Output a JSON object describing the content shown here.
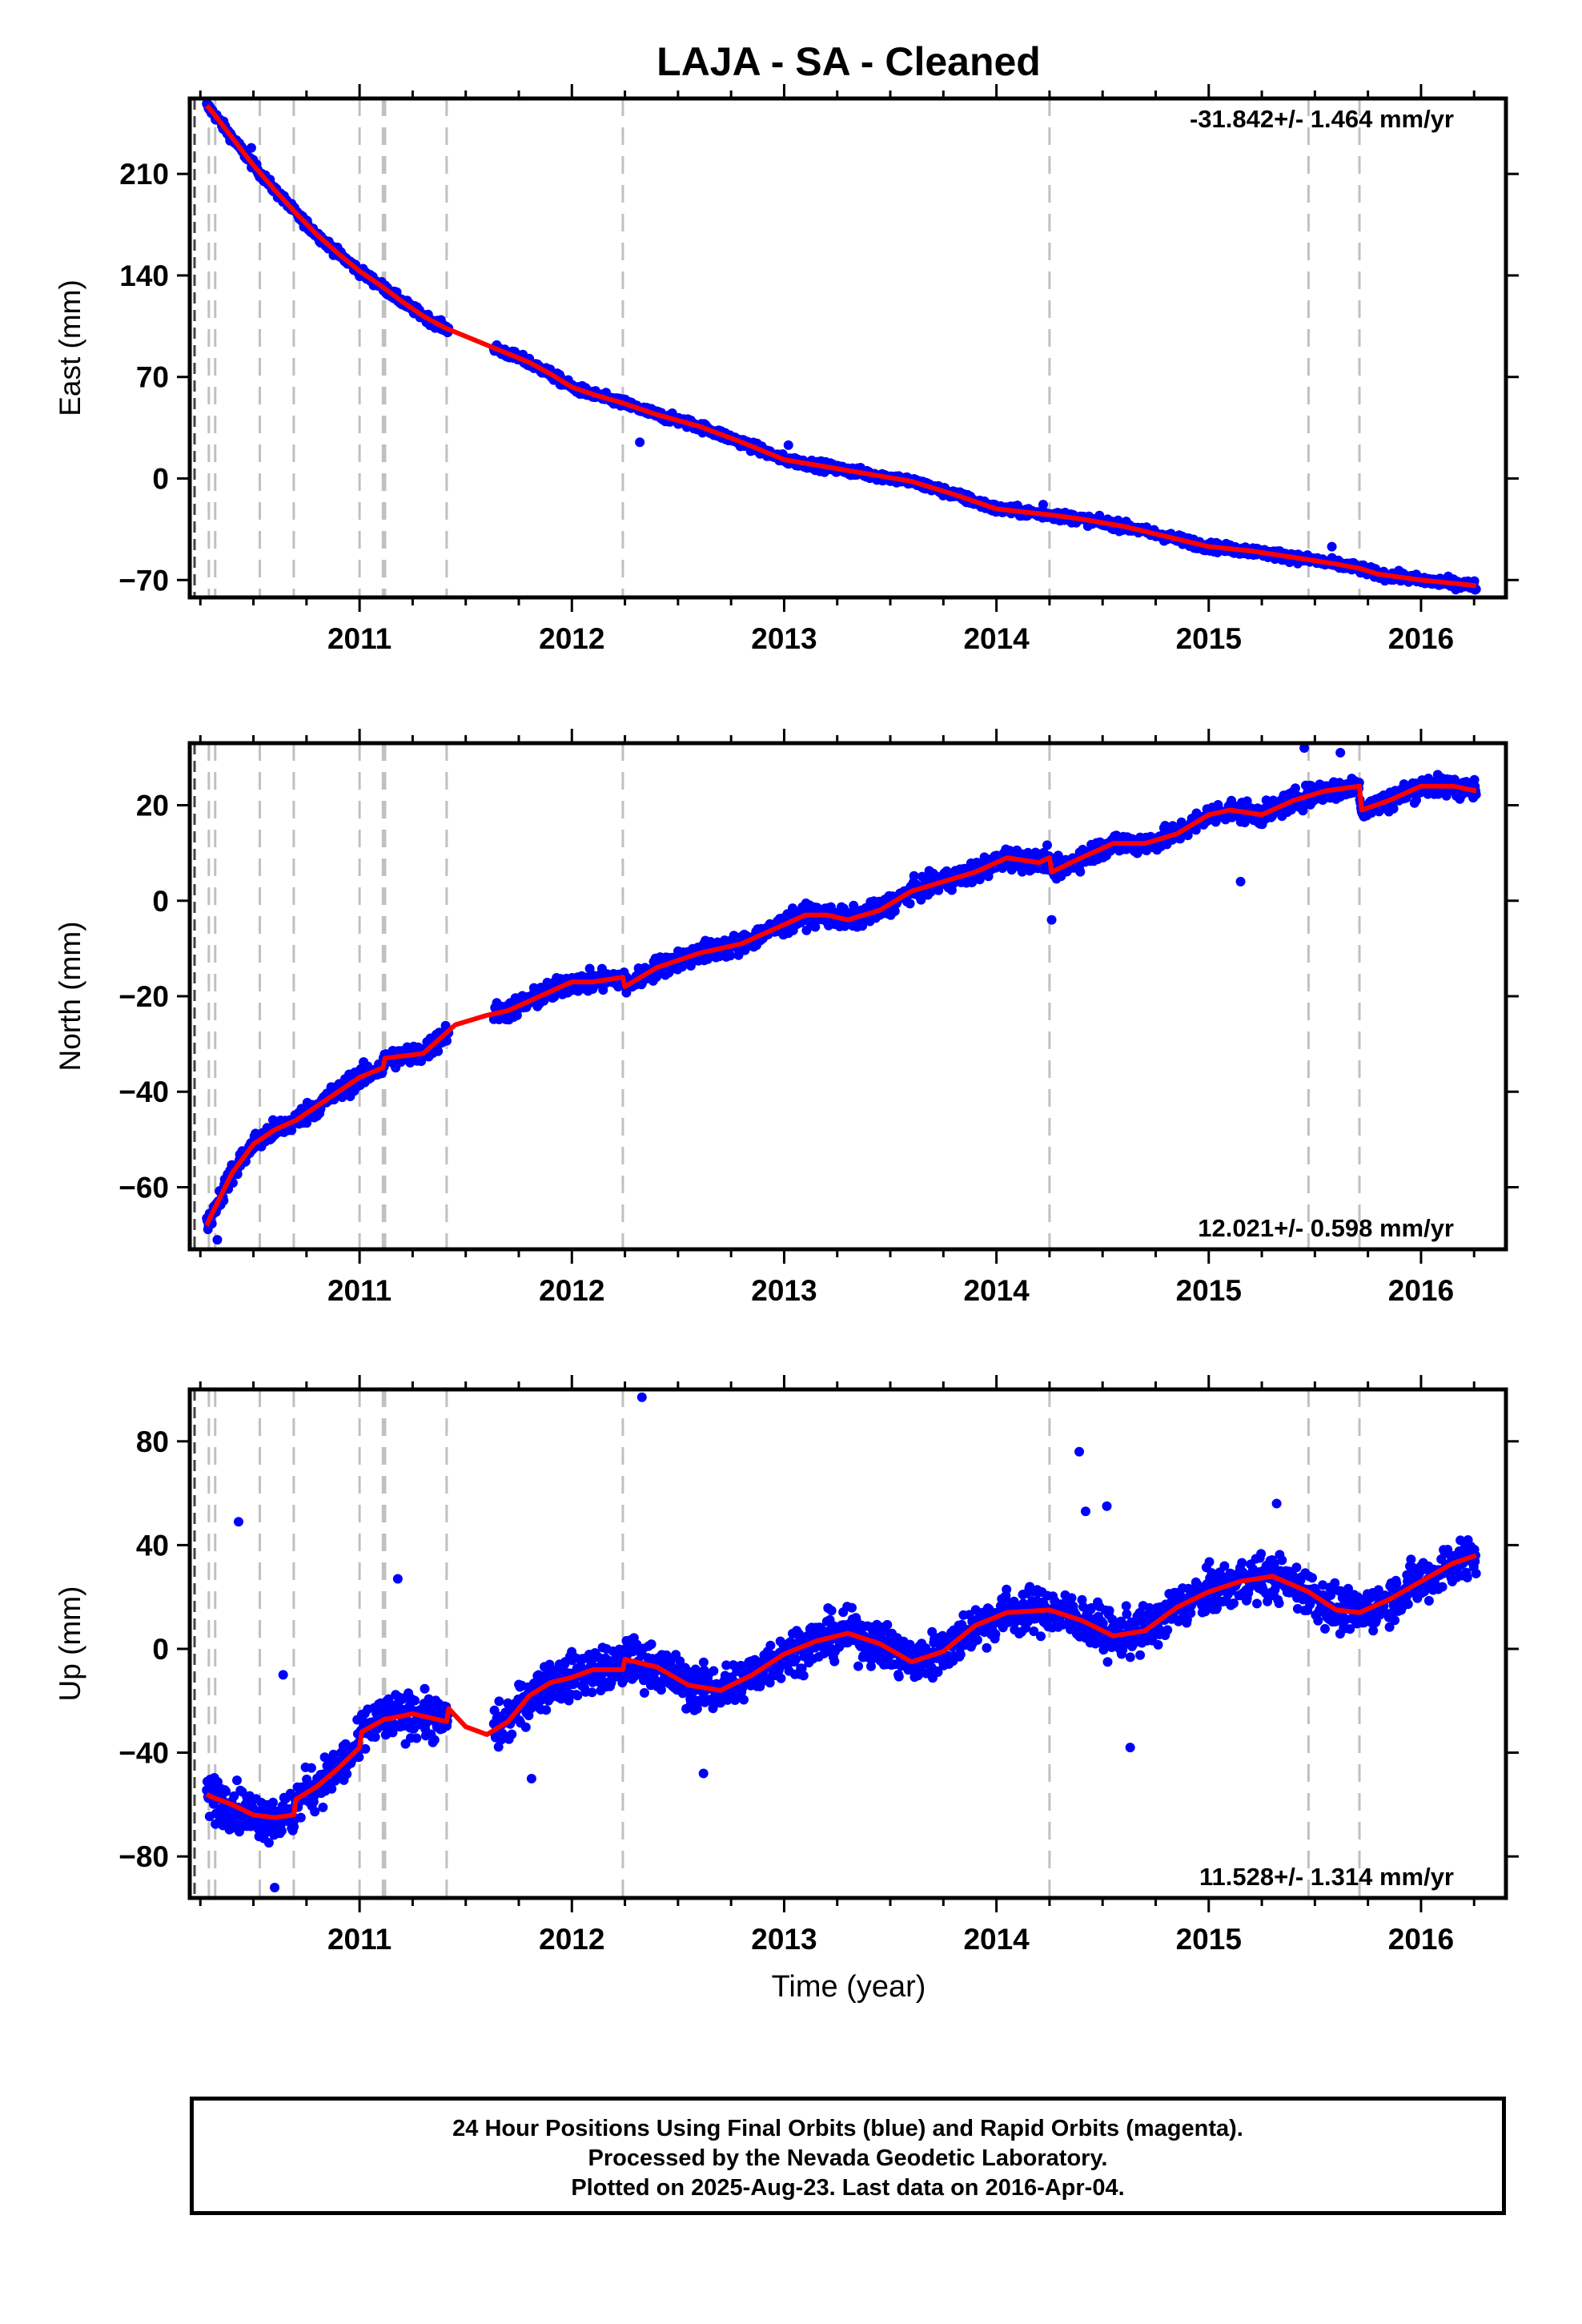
{
  "title": "LAJA  - SA - Cleaned",
  "xlabel": "Time (year)",
  "footer": {
    "line1": "24 Hour Positions Using Final Orbits (blue) and Rapid Orbits (magenta).",
    "line2": "Processed by the Nevada Geodetic Laboratory.",
    "line3": "Plotted on 2025-Aug-23. Last data on 2016-Apr-04."
  },
  "colors": {
    "data_points": "#0000ff",
    "model_fit": "#ff0000",
    "event_lines": "#c0c0c0",
    "axes": "#000000"
  },
  "chart_data": [
    {
      "type": "scatter",
      "name": "east",
      "ylabel": "East (mm)",
      "rate_text": "-31.842+/- 1.464 mm/yr",
      "rate_position": "top-right",
      "xlim": [
        2010.2,
        2016.4
      ],
      "ylim": [
        -82,
        262
      ],
      "yticks": [
        -70,
        0,
        70,
        140,
        210
      ],
      "xticks": [
        2011,
        2012,
        2013,
        2014,
        2015,
        2016
      ],
      "event_lines": [
        2010.29,
        2010.32,
        2010.53,
        2010.69,
        2011.0,
        2011.11,
        2011.12,
        2011.41,
        2012.24,
        2014.25,
        2015.47,
        2015.71
      ],
      "data_gap": [
        2011.42,
        2011.63
      ],
      "model": {
        "x": [
          2010.28,
          2010.3,
          2010.4,
          2010.5,
          2010.6,
          2010.7,
          2010.8,
          2010.9,
          2011.0,
          2011.1,
          2011.2,
          2011.3,
          2011.4,
          2011.5,
          2011.6,
          2011.7,
          2011.8,
          2011.9,
          2012.0,
          2012.1,
          2012.24,
          2012.4,
          2012.6,
          2012.8,
          2013.0,
          2013.2,
          2013.4,
          2013.6,
          2013.8,
          2014.0,
          2014.25,
          2014.4,
          2014.6,
          2014.8,
          2015.0,
          2015.2,
          2015.47,
          2015.6,
          2015.71,
          2015.8,
          2016.0,
          2016.2,
          2016.26
        ],
        "y": [
          257,
          254,
          235,
          216,
          199,
          183,
          168,
          155,
          143,
          133,
          122,
          112,
          104,
          98,
          92,
          86,
          80,
          72,
          63,
          58,
          52,
          44,
          36,
          25,
          13,
          8,
          3,
          -2,
          -11,
          -21,
          -25,
          -28,
          -33,
          -40,
          -47,
          -50,
          -56,
          -59,
          -62,
          -66,
          -70,
          -73,
          -74
        ]
      },
      "outliers": [
        {
          "x": 2010.49,
          "y": 228
        },
        {
          "x": 2012.32,
          "y": 25
        },
        {
          "x": 2013.02,
          "y": 23
        },
        {
          "x": 2014.22,
          "y": -18
        },
        {
          "x": 2015.58,
          "y": -47
        }
      ],
      "noise": 2.2
    },
    {
      "type": "scatter",
      "name": "north",
      "ylabel": "North (mm)",
      "rate_text": "12.021+/- 0.598 mm/yr",
      "rate_position": "bottom-right",
      "xlim": [
        2010.2,
        2016.4
      ],
      "ylim": [
        -73,
        33
      ],
      "yticks": [
        -60,
        -40,
        -20,
        0,
        20
      ],
      "xticks": [
        2011,
        2012,
        2013,
        2014,
        2015,
        2016
      ],
      "event_lines": [
        2010.29,
        2010.32,
        2010.53,
        2010.69,
        2011.0,
        2011.11,
        2011.12,
        2011.41,
        2012.24,
        2014.25,
        2015.47,
        2015.71
      ],
      "data_gap": [
        2011.42,
        2011.63
      ],
      "model": {
        "x": [
          2010.28,
          2010.3,
          2010.4,
          2010.5,
          2010.6,
          2010.7,
          2010.8,
          2010.9,
          2011.0,
          2011.11,
          2011.12,
          2011.3,
          2011.45,
          2011.6,
          2011.7,
          2011.8,
          2011.9,
          2012.0,
          2012.1,
          2012.24,
          2012.25,
          2012.4,
          2012.6,
          2012.8,
          2012.95,
          2013.1,
          2013.2,
          2013.3,
          2013.45,
          2013.6,
          2013.75,
          2013.9,
          2014.05,
          2014.2,
          2014.25,
          2014.26,
          2014.4,
          2014.55,
          2014.7,
          2014.85,
          2015.0,
          2015.1,
          2015.25,
          2015.4,
          2015.55,
          2015.71,
          2015.72,
          2015.85,
          2016.0,
          2016.15,
          2016.26
        ],
        "y": [
          -68,
          -66,
          -57,
          -51,
          -48,
          -46,
          -43,
          -40,
          -37,
          -35,
          -33,
          -32,
          -26,
          -24,
          -23,
          -21,
          -19,
          -17,
          -17,
          -16,
          -18,
          -14,
          -11,
          -9,
          -6,
          -3,
          -3,
          -4,
          -2,
          2,
          4,
          6,
          9,
          8,
          9,
          6,
          9,
          12,
          12,
          14,
          18,
          19,
          18,
          21,
          23,
          24,
          19,
          21,
          24,
          24,
          23
        ]
      },
      "outliers": [
        {
          "x": 2010.33,
          "y": -71
        },
        {
          "x": 2015.15,
          "y": 4
        },
        {
          "x": 2014.26,
          "y": -4
        },
        {
          "x": 2015.45,
          "y": 32
        },
        {
          "x": 2015.62,
          "y": 31
        },
        {
          "x": 2011.65,
          "y": -23
        }
      ],
      "noise": 1.5
    },
    {
      "type": "scatter",
      "name": "up",
      "ylabel": "Up (mm)",
      "rate_text": "11.528+/- 1.314 mm/yr",
      "rate_position": "bottom-right",
      "xlim": [
        2010.2,
        2016.4
      ],
      "ylim": [
        -96,
        100
      ],
      "yticks": [
        -80,
        -40,
        0,
        40,
        80
      ],
      "xticks": [
        2011,
        2012,
        2013,
        2014,
        2015,
        2016
      ],
      "event_lines": [
        2010.29,
        2010.32,
        2010.53,
        2010.69,
        2011.0,
        2011.11,
        2011.12,
        2011.41,
        2012.24,
        2014.25,
        2015.47,
        2015.71
      ],
      "data_gap": [
        2011.42,
        2011.63
      ],
      "model": {
        "x": [
          2010.28,
          2010.3,
          2010.4,
          2010.5,
          2010.6,
          2010.69,
          2010.7,
          2010.8,
          2010.9,
          2011.0,
          2011.01,
          2011.12,
          2011.13,
          2011.25,
          2011.41,
          2011.42,
          2011.5,
          2011.6,
          2011.7,
          2011.8,
          2011.9,
          2012.0,
          2012.1,
          2012.24,
          2012.25,
          2012.4,
          2012.55,
          2012.7,
          2012.85,
          2013.0,
          2013.15,
          2013.3,
          2013.45,
          2013.6,
          2013.75,
          2013.9,
          2014.05,
          2014.25,
          2014.4,
          2014.55,
          2014.7,
          2014.85,
          2015.0,
          2015.15,
          2015.3,
          2015.47,
          2015.6,
          2015.71,
          2015.85,
          2016.0,
          2016.15,
          2016.26
        ],
        "y": [
          -56,
          -57,
          -60,
          -64,
          -65,
          -64,
          -58,
          -53,
          -46,
          -38,
          -32,
          -27,
          -27,
          -25,
          -28,
          -23,
          -30,
          -33,
          -28,
          -18,
          -13,
          -11,
          -8,
          -8,
          -4,
          -7,
          -14,
          -16,
          -10,
          -2,
          3,
          6,
          2,
          -5,
          -1,
          9,
          14,
          15,
          11,
          5,
          7,
          16,
          22,
          26,
          28,
          22,
          15,
          14,
          19,
          26,
          33,
          36
        ]
      },
      "outliers": [
        {
          "x": 2010.43,
          "y": 49
        },
        {
          "x": 2010.64,
          "y": -10
        },
        {
          "x": 2011.18,
          "y": 27
        },
        {
          "x": 2012.33,
          "y": 97
        },
        {
          "x": 2012.62,
          "y": -48
        },
        {
          "x": 2014.39,
          "y": 76
        },
        {
          "x": 2014.42,
          "y": 53
        },
        {
          "x": 2014.52,
          "y": 55
        },
        {
          "x": 2014.63,
          "y": -38
        },
        {
          "x": 2015.32,
          "y": 56
        },
        {
          "x": 2011.81,
          "y": -50
        },
        {
          "x": 2010.6,
          "y": -92
        }
      ],
      "noise": 6
    }
  ]
}
